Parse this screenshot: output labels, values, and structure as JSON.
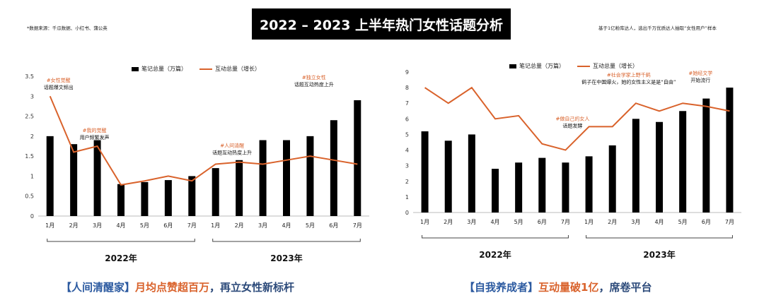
{
  "header": {
    "title": "2022 – 2023 上半年热门女性话题分析",
    "source_note": "*数据来源：千瓜数据、小红书、蒲公英",
    "sample_note": "基于1亿粉库达人，选出千万优质达人抽取“女性用户”样本"
  },
  "chart_data": [
    {
      "type": "bar+line",
      "categories": [
        "1月",
        "2月",
        "3月",
        "4月",
        "5月",
        "6月",
        "7月",
        "1月",
        "2月",
        "3月",
        "4月",
        "5月",
        "6月",
        "7月"
      ],
      "year_groups": [
        {
          "label": "2022年",
          "from": 0,
          "to": 6
        },
        {
          "label": "2023年",
          "from": 7,
          "to": 13
        }
      ],
      "ylim": [
        0,
        3.5
      ],
      "yticks": [
        "0",
        "0.5",
        "1",
        "1.5",
        "2",
        "2.5",
        "3",
        "3.5"
      ],
      "grid": false,
      "legend_position": "top",
      "series": [
        {
          "name": "笔记总量（万篇）",
          "kind": "bar",
          "color": "#000000",
          "values": [
            2.0,
            1.8,
            1.9,
            0.8,
            0.85,
            0.9,
            1.0,
            1.2,
            1.4,
            1.9,
            1.9,
            2.0,
            2.4,
            2.9
          ]
        },
        {
          "name": "互动总量（增长）",
          "kind": "line",
          "color": "#d9622b",
          "values": [
            3.0,
            1.6,
            1.75,
            0.78,
            0.88,
            1.0,
            0.88,
            1.3,
            1.35,
            1.3,
            1.4,
            1.5,
            1.4,
            1.3
          ]
        }
      ],
      "annotations": [
        {
          "tag": "#女性觉醒",
          "text": "话题爆文频出",
          "index": 0
        },
        {
          "tag": "#我的觉醒",
          "text": "用户频繁发声",
          "index": 2
        },
        {
          "tag": "#人间清醒",
          "text": "话题互动热度上升",
          "index": 8
        },
        {
          "tag": "#独立女性",
          "text": "话题互动热度上升",
          "index": 12
        }
      ],
      "caption": {
        "bracket": "【人间清醒家】",
        "text": "月均点赞超百万",
        "rest": "，再立女性新标杆"
      }
    },
    {
      "type": "bar+line",
      "categories": [
        "1月",
        "2月",
        "3月",
        "4月",
        "5月",
        "6月",
        "7月",
        "1月",
        "2月",
        "3月",
        "4月",
        "5月",
        "6月",
        "7月"
      ],
      "year_groups": [
        {
          "label": "2022年",
          "from": 0,
          "to": 6
        },
        {
          "label": "2023年",
          "from": 7,
          "to": 13
        }
      ],
      "ylim": [
        0,
        9
      ],
      "yticks": [
        "0",
        "1",
        "2",
        "3",
        "4",
        "5",
        "6",
        "7",
        "8",
        "9"
      ],
      "grid": false,
      "legend_position": "top",
      "series": [
        {
          "name": "笔记总量（万篇）",
          "kind": "bar",
          "color": "#000000",
          "values": [
            5.2,
            4.6,
            5.0,
            2.8,
            3.2,
            3.5,
            3.2,
            3.6,
            4.3,
            6.0,
            5.8,
            6.5,
            7.3,
            8.0
          ]
        },
        {
          "name": "互动总量（增长）",
          "kind": "line",
          "color": "#d9622b",
          "values": [
            8.0,
            7.0,
            8.0,
            6.0,
            6.2,
            4.4,
            4.0,
            5.5,
            5.5,
            7.0,
            6.5,
            7.0,
            6.8,
            6.5
          ]
        }
      ],
      "annotations": [
        {
          "tag": "#做自己的女人",
          "text": "话题发酵",
          "index": 6
        },
        {
          "tag": "#社会学家上野千鹤",
          "text": "鹤子在中国爆火，她的女性主义是是“自由”",
          "index": 9
        },
        {
          "tag": "#她经文学",
          "text": "开始流行",
          "index": 12
        }
      ],
      "caption": {
        "bracket": "【自我养成者】",
        "text": "互动量破1亿",
        "rest": "，席卷平台"
      }
    }
  ]
}
